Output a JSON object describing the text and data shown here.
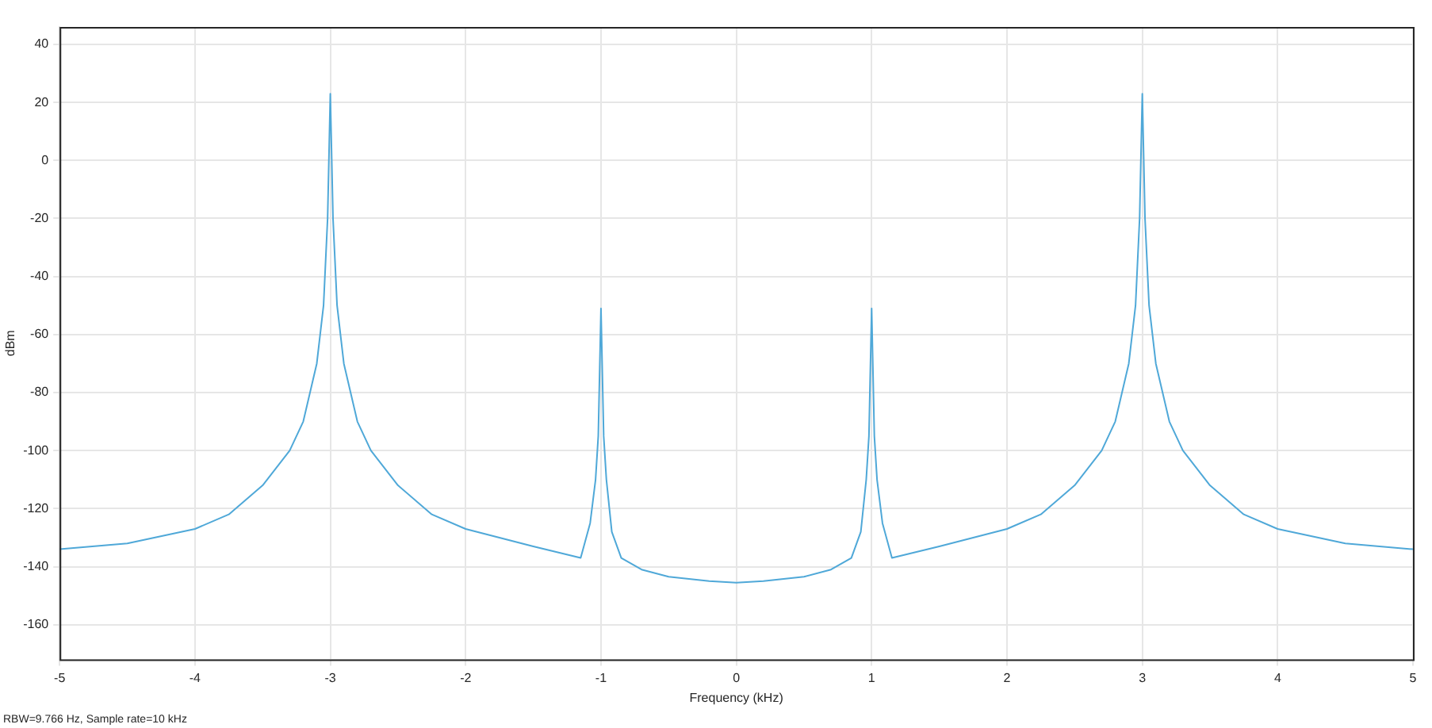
{
  "chart_data": {
    "type": "line",
    "xlabel": "Frequency (kHz)",
    "ylabel": "dBm",
    "annotations": [
      "RBW=9.766 Hz, Sample rate=10 kHz"
    ],
    "xlim": [
      -5,
      5
    ],
    "xticks": [
      -5,
      -4,
      -3,
      -2,
      -1,
      0,
      1,
      2,
      3,
      4,
      5
    ],
    "ylim": [
      -172,
      46
    ],
    "yticks": [
      -160,
      -140,
      -120,
      -100,
      -80,
      -60,
      -40,
      -20,
      0,
      20,
      40
    ],
    "grid": true,
    "marker": "none",
    "line_style": "solid",
    "series": [
      {
        "color": "#4fa8d8",
        "x": [
          -5,
          -4.5,
          -4,
          -3.75,
          -3.5,
          -3.3,
          -3.2,
          -3.1,
          -3.05,
          -3.02,
          -3,
          -2.98,
          -2.95,
          -2.9,
          -2.8,
          -2.7,
          -2.5,
          -2.25,
          -2,
          -1.5,
          -1.15,
          -1.08,
          -1.04,
          -1.02,
          -1,
          -0.98,
          -0.96,
          -0.92,
          -0.85,
          -0.7,
          -0.5,
          -0.2,
          0,
          0.2,
          0.5,
          0.7,
          0.85,
          0.92,
          0.96,
          0.98,
          1,
          1.02,
          1.04,
          1.08,
          1.15,
          1.5,
          2,
          2.25,
          2.5,
          2.7,
          2.8,
          2.9,
          2.95,
          2.98,
          3,
          3.02,
          3.05,
          3.1,
          3.2,
          3.3,
          3.5,
          3.75,
          4,
          4.5,
          5
        ],
        "values": [
          -134,
          -132,
          -127,
          -122,
          -112,
          -100,
          -90,
          -70,
          -50,
          -20,
          23,
          -20,
          -50,
          -70,
          -90,
          -100,
          -112,
          -122,
          -127,
          -133,
          -137,
          -125,
          -110,
          -95,
          -51,
          -95,
          -110,
          -128,
          -137,
          -141,
          -143.5,
          -145,
          -145.5,
          -145,
          -143.5,
          -141,
          -137,
          -128,
          -110,
          -95,
          -51,
          -95,
          -110,
          -125,
          -137,
          -133,
          -127,
          -122,
          -112,
          -100,
          -90,
          -70,
          -50,
          -20,
          23,
          -20,
          -50,
          -70,
          -90,
          -100,
          -112,
          -122,
          -127,
          -132,
          -134
        ]
      }
    ]
  }
}
